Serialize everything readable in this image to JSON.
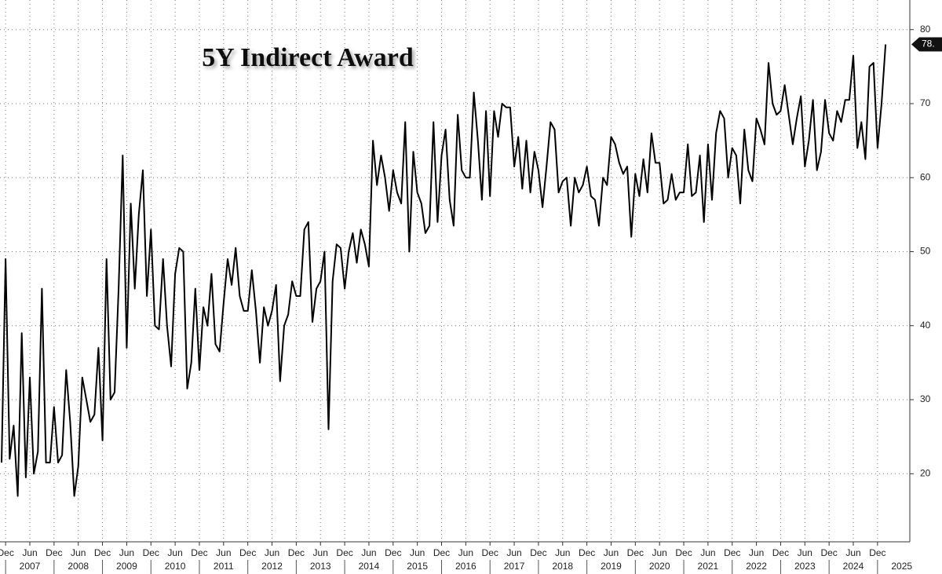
{
  "chart_data": {
    "type": "line",
    "title": "5Y Indirect Award",
    "x": [
      "2006-11",
      "2006-12",
      "2007-01",
      "2007-02",
      "2007-03",
      "2007-04",
      "2007-05",
      "2007-06",
      "2007-07",
      "2007-08",
      "2007-09",
      "2007-10",
      "2007-11",
      "2007-12",
      "2008-01",
      "2008-02",
      "2008-03",
      "2008-04",
      "2008-05",
      "2008-06",
      "2008-07",
      "2008-08",
      "2008-09",
      "2008-10",
      "2008-11",
      "2008-12",
      "2009-01",
      "2009-02",
      "2009-03",
      "2009-04",
      "2009-05",
      "2009-06",
      "2009-07",
      "2009-08",
      "2009-09",
      "2009-10",
      "2009-11",
      "2009-12",
      "2010-01",
      "2010-02",
      "2010-03",
      "2010-04",
      "2010-05",
      "2010-06",
      "2010-07",
      "2010-08",
      "2010-09",
      "2010-10",
      "2010-11",
      "2010-12",
      "2011-01",
      "2011-02",
      "2011-03",
      "2011-04",
      "2011-05",
      "2011-06",
      "2011-07",
      "2011-08",
      "2011-09",
      "2011-10",
      "2011-11",
      "2011-12",
      "2012-01",
      "2012-02",
      "2012-03",
      "2012-04",
      "2012-05",
      "2012-06",
      "2012-07",
      "2012-08",
      "2012-09",
      "2012-10",
      "2012-11",
      "2012-12",
      "2013-01",
      "2013-02",
      "2013-03",
      "2013-04",
      "2013-05",
      "2013-06",
      "2013-07",
      "2013-08",
      "2013-09",
      "2013-10",
      "2013-11",
      "2013-12",
      "2014-01",
      "2014-02",
      "2014-03",
      "2014-04",
      "2014-05",
      "2014-06",
      "2014-07",
      "2014-08",
      "2014-09",
      "2014-10",
      "2014-11",
      "2014-12",
      "2015-01",
      "2015-02",
      "2015-03",
      "2015-04",
      "2015-05",
      "2015-06",
      "2015-07",
      "2015-08",
      "2015-09",
      "2015-10",
      "2015-11",
      "2015-12",
      "2016-01",
      "2016-02",
      "2016-03",
      "2016-04",
      "2016-05",
      "2016-06",
      "2016-07",
      "2016-08",
      "2016-09",
      "2016-10",
      "2016-11",
      "2016-12",
      "2017-01",
      "2017-02",
      "2017-03",
      "2017-04",
      "2017-05",
      "2017-06",
      "2017-07",
      "2017-08",
      "2017-09",
      "2017-10",
      "2017-11",
      "2017-12",
      "2018-01",
      "2018-02",
      "2018-03",
      "2018-04",
      "2018-05",
      "2018-06",
      "2018-07",
      "2018-08",
      "2018-09",
      "2018-10",
      "2018-11",
      "2018-12",
      "2019-01",
      "2019-02",
      "2019-03",
      "2019-04",
      "2019-05",
      "2019-06",
      "2019-07",
      "2019-08",
      "2019-09",
      "2019-10",
      "2019-11",
      "2019-12",
      "2020-01",
      "2020-02",
      "2020-03",
      "2020-04",
      "2020-05",
      "2020-06",
      "2020-07",
      "2020-08",
      "2020-09",
      "2020-10",
      "2020-11",
      "2020-12",
      "2021-01",
      "2021-02",
      "2021-03",
      "2021-04",
      "2021-05",
      "2021-06",
      "2021-07",
      "2021-08",
      "2021-09",
      "2021-10",
      "2021-11",
      "2021-12",
      "2022-01",
      "2022-02",
      "2022-03",
      "2022-04",
      "2022-05",
      "2022-06",
      "2022-07",
      "2022-08",
      "2022-09",
      "2022-10",
      "2022-11",
      "2022-12",
      "2023-01",
      "2023-02",
      "2023-03",
      "2023-04",
      "2023-05",
      "2023-06",
      "2023-07",
      "2023-08",
      "2023-09",
      "2023-10",
      "2023-11",
      "2023-12",
      "2024-01",
      "2024-02",
      "2024-03",
      "2024-04",
      "2024-05",
      "2024-06",
      "2024-07",
      "2024-08",
      "2024-09",
      "2024-10",
      "2024-11",
      "2024-12",
      "2025-01",
      "2025-02"
    ],
    "series": [
      {
        "color": "#000000",
        "values": [
          21.5,
          49,
          22,
          26.5,
          17,
          39,
          19.5,
          33,
          20,
          23,
          45,
          21.5,
          21.5,
          29,
          21.5,
          22.5,
          34,
          27,
          17,
          21,
          33,
          30,
          27,
          28,
          37,
          24.5,
          49,
          30,
          31,
          45,
          63,
          37,
          56.5,
          45,
          55,
          61,
          44,
          53,
          40,
          39.5,
          49,
          40,
          34.5,
          47,
          50.5,
          50,
          31.5,
          35,
          45,
          34,
          42.5,
          40,
          47,
          37.5,
          36.5,
          43,
          49,
          45.5,
          50.5,
          44,
          42,
          42,
          47.5,
          42,
          35,
          42.5,
          40,
          42,
          45.5,
          32.5,
          40,
          41.5,
          46,
          44,
          44,
          53,
          54,
          40.5,
          45,
          46,
          50,
          26,
          46,
          51,
          50.5,
          45,
          50,
          52.5,
          48.5,
          53,
          51,
          48,
          65,
          59,
          63,
          60,
          55.5,
          61,
          58,
          56.5,
          67.5,
          50,
          63.5,
          58,
          56.5,
          52.5,
          53.5,
          67.5,
          54,
          63,
          66.5,
          57,
          53.5,
          68.5,
          61,
          60,
          60,
          71.5,
          65,
          57,
          69,
          57.5,
          69,
          65.5,
          70,
          69.5,
          69.5,
          61.5,
          65.5,
          58.5,
          65,
          58,
          63.5,
          61,
          56,
          61.5,
          67.5,
          66.5,
          58,
          59.5,
          60,
          53.5,
          60,
          58,
          59,
          61.5,
          57.5,
          57,
          53.5,
          60,
          59,
          65.5,
          64.5,
          62,
          60.5,
          61.5,
          52,
          60.5,
          57.5,
          62.5,
          58,
          66,
          62,
          62,
          56.5,
          57,
          60.5,
          57,
          58,
          58,
          64.5,
          57.5,
          58,
          63,
          54,
          64.5,
          57,
          66,
          69,
          68,
          60,
          64,
          63,
          56.5,
          66.5,
          61,
          59.5,
          68,
          66.5,
          64.5,
          75.5,
          70,
          68.5,
          69,
          72.5,
          68.5,
          64.5,
          68,
          71,
          61.5,
          65,
          70.5,
          61,
          63.5,
          70.5,
          66,
          65,
          69,
          67.5,
          70.5,
          70.5,
          76.5,
          64,
          67.5,
          62.5,
          75,
          75.5,
          64,
          70,
          78
        ]
      }
    ],
    "last_value_label": "78.",
    "xlim": [
      "2006-11",
      "2025-08"
    ],
    "xticks": [
      {
        "value": "2006-12",
        "label": "Dec"
      },
      {
        "value": "2007-06",
        "label": "Jun"
      },
      {
        "value": "2007-12",
        "label": "Dec"
      },
      {
        "value": "2008-06",
        "label": "Jun"
      },
      {
        "value": "2008-12",
        "label": "Dec"
      },
      {
        "value": "2009-06",
        "label": "Jun"
      },
      {
        "value": "2009-12",
        "label": "Dec"
      },
      {
        "value": "2010-06",
        "label": "Jun"
      },
      {
        "value": "2010-12",
        "label": "Dec"
      },
      {
        "value": "2011-06",
        "label": "Jun"
      },
      {
        "value": "2011-12",
        "label": "Dec"
      },
      {
        "value": "2012-06",
        "label": "Jun"
      },
      {
        "value": "2012-12",
        "label": "Dec"
      },
      {
        "value": "2013-06",
        "label": "Jun"
      },
      {
        "value": "2013-12",
        "label": "Dec"
      },
      {
        "value": "2014-06",
        "label": "Jun"
      },
      {
        "value": "2014-12",
        "label": "Dec"
      },
      {
        "value": "2015-06",
        "label": "Jun"
      },
      {
        "value": "2015-12",
        "label": "Dec"
      },
      {
        "value": "2016-06",
        "label": "Jun"
      },
      {
        "value": "2016-12",
        "label": "Dec"
      },
      {
        "value": "2017-06",
        "label": "Jun"
      },
      {
        "value": "2017-12",
        "label": "Dec"
      },
      {
        "value": "2018-06",
        "label": "Jun"
      },
      {
        "value": "2018-12",
        "label": "Dec"
      },
      {
        "value": "2019-06",
        "label": "Jun"
      },
      {
        "value": "2019-12",
        "label": "Dec"
      },
      {
        "value": "2020-06",
        "label": "Jun"
      },
      {
        "value": "2020-12",
        "label": "Dec"
      },
      {
        "value": "2021-06",
        "label": "Jun"
      },
      {
        "value": "2021-12",
        "label": "Dec"
      },
      {
        "value": "2022-06",
        "label": "Jun"
      },
      {
        "value": "2022-12",
        "label": "Dec"
      },
      {
        "value": "2023-06",
        "label": "Jun"
      },
      {
        "value": "2023-12",
        "label": "Dec"
      },
      {
        "value": "2024-06",
        "label": "Jun"
      },
      {
        "value": "2024-12",
        "label": "Dec"
      }
    ],
    "xyears": [
      2007,
      2008,
      2009,
      2010,
      2011,
      2012,
      2013,
      2014,
      2015,
      2016,
      2017,
      2018,
      2019,
      2020,
      2021,
      2022,
      2023,
      2024,
      2025
    ],
    "ylim": [
      10.8,
      84
    ],
    "yticks": [
      20,
      30,
      40,
      50,
      60,
      70,
      80
    ],
    "grid": true
  }
}
